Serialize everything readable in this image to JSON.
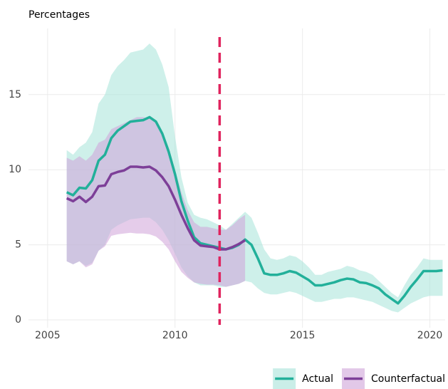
{
  "chart_data": {
    "type": "line-band",
    "y_label": "Percentages",
    "xlim": [
      2004.25,
      2020.6
    ],
    "ylim": [
      -0.52,
      19.4
    ],
    "xticks": [
      2005,
      2010,
      2015,
      2020
    ],
    "yticks": [
      0,
      5,
      10,
      15
    ],
    "grid": true,
    "legend": "bottom-right",
    "vline": {
      "x": 2011.75,
      "color": "#e0245e"
    },
    "series": [
      {
        "name": "Actual",
        "color": "#22b09a",
        "band_color": "#a6e3d9",
        "x": [
          2005.75,
          2006,
          2006.25,
          2006.5,
          2006.75,
          2007,
          2007.25,
          2007.5,
          2007.75,
          2008,
          2008.25,
          2008.5,
          2008.75,
          2009,
          2009.25,
          2009.5,
          2009.75,
          2010,
          2010.25,
          2010.5,
          2010.75,
          2011,
          2011.25,
          2011.5,
          2011.75,
          2012,
          2012.25,
          2012.5,
          2012.75,
          2013,
          2013.25,
          2013.5,
          2013.75,
          2014,
          2014.25,
          2014.5,
          2014.75,
          2015,
          2015.25,
          2015.5,
          2015.75,
          2016,
          2016.25,
          2016.5,
          2016.75,
          2017,
          2017.25,
          2017.5,
          2017.75,
          2018,
          2018.25,
          2018.5,
          2018.75,
          2019,
          2019.25,
          2019.5,
          2019.75,
          2020,
          2020.25,
          2020.5
        ],
        "values": [
          8.5,
          8.3,
          8.8,
          8.75,
          9.3,
          10.6,
          11.0,
          12.1,
          12.6,
          12.9,
          13.2,
          13.25,
          13.3,
          13.5,
          13.2,
          12.4,
          11.2,
          9.7,
          7.9,
          6.6,
          5.5,
          5.1,
          5.0,
          4.9,
          4.8,
          4.7,
          4.8,
          5.0,
          5.35,
          5.0,
          4.1,
          3.1,
          3.0,
          3.0,
          3.1,
          3.25,
          3.15,
          2.9,
          2.65,
          2.3,
          2.3,
          2.4,
          2.5,
          2.65,
          2.75,
          2.7,
          2.5,
          2.45,
          2.3,
          2.1,
          1.7,
          1.4,
          1.1,
          1.6,
          2.2,
          2.7,
          3.25,
          3.25,
          3.25,
          3.3
        ],
        "upper": [
          11.3,
          11.0,
          11.5,
          11.8,
          12.5,
          14.4,
          15.0,
          16.3,
          16.9,
          17.3,
          17.8,
          17.9,
          18.0,
          18.4,
          18.0,
          17.0,
          15.5,
          12.2,
          9.5,
          7.8,
          7.0,
          6.8,
          6.7,
          6.5,
          6.3,
          6.0,
          6.4,
          6.8,
          7.2,
          6.8,
          5.8,
          4.7,
          4.1,
          4.0,
          4.1,
          4.3,
          4.2,
          3.9,
          3.5,
          3.0,
          3.0,
          3.2,
          3.3,
          3.4,
          3.6,
          3.5,
          3.3,
          3.2,
          3.0,
          2.6,
          2.2,
          1.8,
          1.5,
          2.3,
          3.0,
          3.5,
          4.1,
          4.0,
          4.0,
          4.0
        ],
        "lower": [
          3.9,
          3.7,
          3.9,
          3.6,
          3.8,
          4.6,
          5.0,
          6.0,
          6.3,
          6.5,
          6.7,
          6.75,
          6.8,
          6.8,
          6.5,
          6.0,
          5.3,
          4.4,
          3.5,
          2.9,
          2.5,
          2.3,
          2.3,
          2.3,
          2.2,
          2.2,
          2.3,
          2.4,
          2.6,
          2.5,
          2.1,
          1.8,
          1.7,
          1.7,
          1.8,
          1.9,
          1.8,
          1.6,
          1.4,
          1.2,
          1.2,
          1.3,
          1.4,
          1.4,
          1.5,
          1.5,
          1.4,
          1.3,
          1.2,
          1.0,
          0.8,
          0.6,
          0.5,
          0.8,
          1.1,
          1.3,
          1.5,
          1.6,
          1.6,
          1.6
        ]
      },
      {
        "name": "Counterfactual",
        "color": "#7d3f98",
        "band_color": "#cfa3d8",
        "x": [
          2005.75,
          2006,
          2006.25,
          2006.5,
          2006.75,
          2007,
          2007.25,
          2007.5,
          2007.75,
          2008,
          2008.25,
          2008.5,
          2008.75,
          2009,
          2009.25,
          2009.5,
          2009.75,
          2010,
          2010.25,
          2010.5,
          2010.75,
          2011,
          2011.25,
          2011.5,
          2011.75,
          2012,
          2012.25,
          2012.5,
          2012.75
        ],
        "values": [
          8.1,
          7.9,
          8.2,
          7.85,
          8.2,
          8.9,
          8.95,
          9.7,
          9.85,
          9.95,
          10.2,
          10.2,
          10.15,
          10.2,
          9.95,
          9.5,
          8.9,
          8.0,
          7.0,
          6.1,
          5.3,
          4.95,
          4.9,
          4.85,
          4.7,
          4.7,
          4.85,
          5.05,
          5.3
        ],
        "upper": [
          10.8,
          10.6,
          10.9,
          10.6,
          11.0,
          11.8,
          12.0,
          12.7,
          12.9,
          13.1,
          13.3,
          13.5,
          13.5,
          13.4,
          13.1,
          12.5,
          11.5,
          10.0,
          8.5,
          7.3,
          6.5,
          6.2,
          6.2,
          6.1,
          6.0,
          6.0,
          6.3,
          6.7,
          7.0
        ],
        "lower": [
          3.9,
          3.7,
          3.9,
          3.5,
          3.7,
          4.6,
          4.9,
          5.6,
          5.7,
          5.75,
          5.8,
          5.75,
          5.75,
          5.7,
          5.55,
          5.2,
          4.7,
          3.9,
          3.2,
          2.8,
          2.5,
          2.4,
          2.35,
          2.35,
          2.3,
          2.2,
          2.3,
          2.4,
          2.6
        ]
      }
    ]
  }
}
